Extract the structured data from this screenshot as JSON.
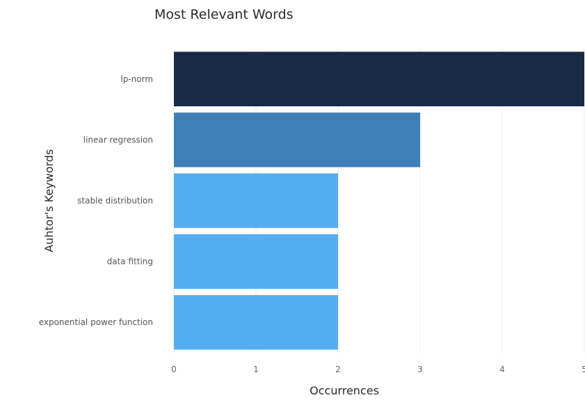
{
  "chart_data": {
    "type": "bar",
    "orientation": "horizontal",
    "title": "Most Relevant Words",
    "xlabel": "Occurrences",
    "ylabel": "Auhtor's Keywords",
    "categories": [
      "lp-norm",
      "linear regression",
      "stable distribution",
      "data fitting",
      "exponential power function"
    ],
    "values": [
      5,
      3,
      2,
      2,
      2
    ],
    "xlim": [
      0,
      5
    ],
    "xticks": [
      0,
      1,
      2,
      3,
      4,
      5
    ],
    "grid": true,
    "legend": "none",
    "colors": {
      "high": "#172b45",
      "mid": "#3f7fb8",
      "low": "#55adf2"
    }
  }
}
